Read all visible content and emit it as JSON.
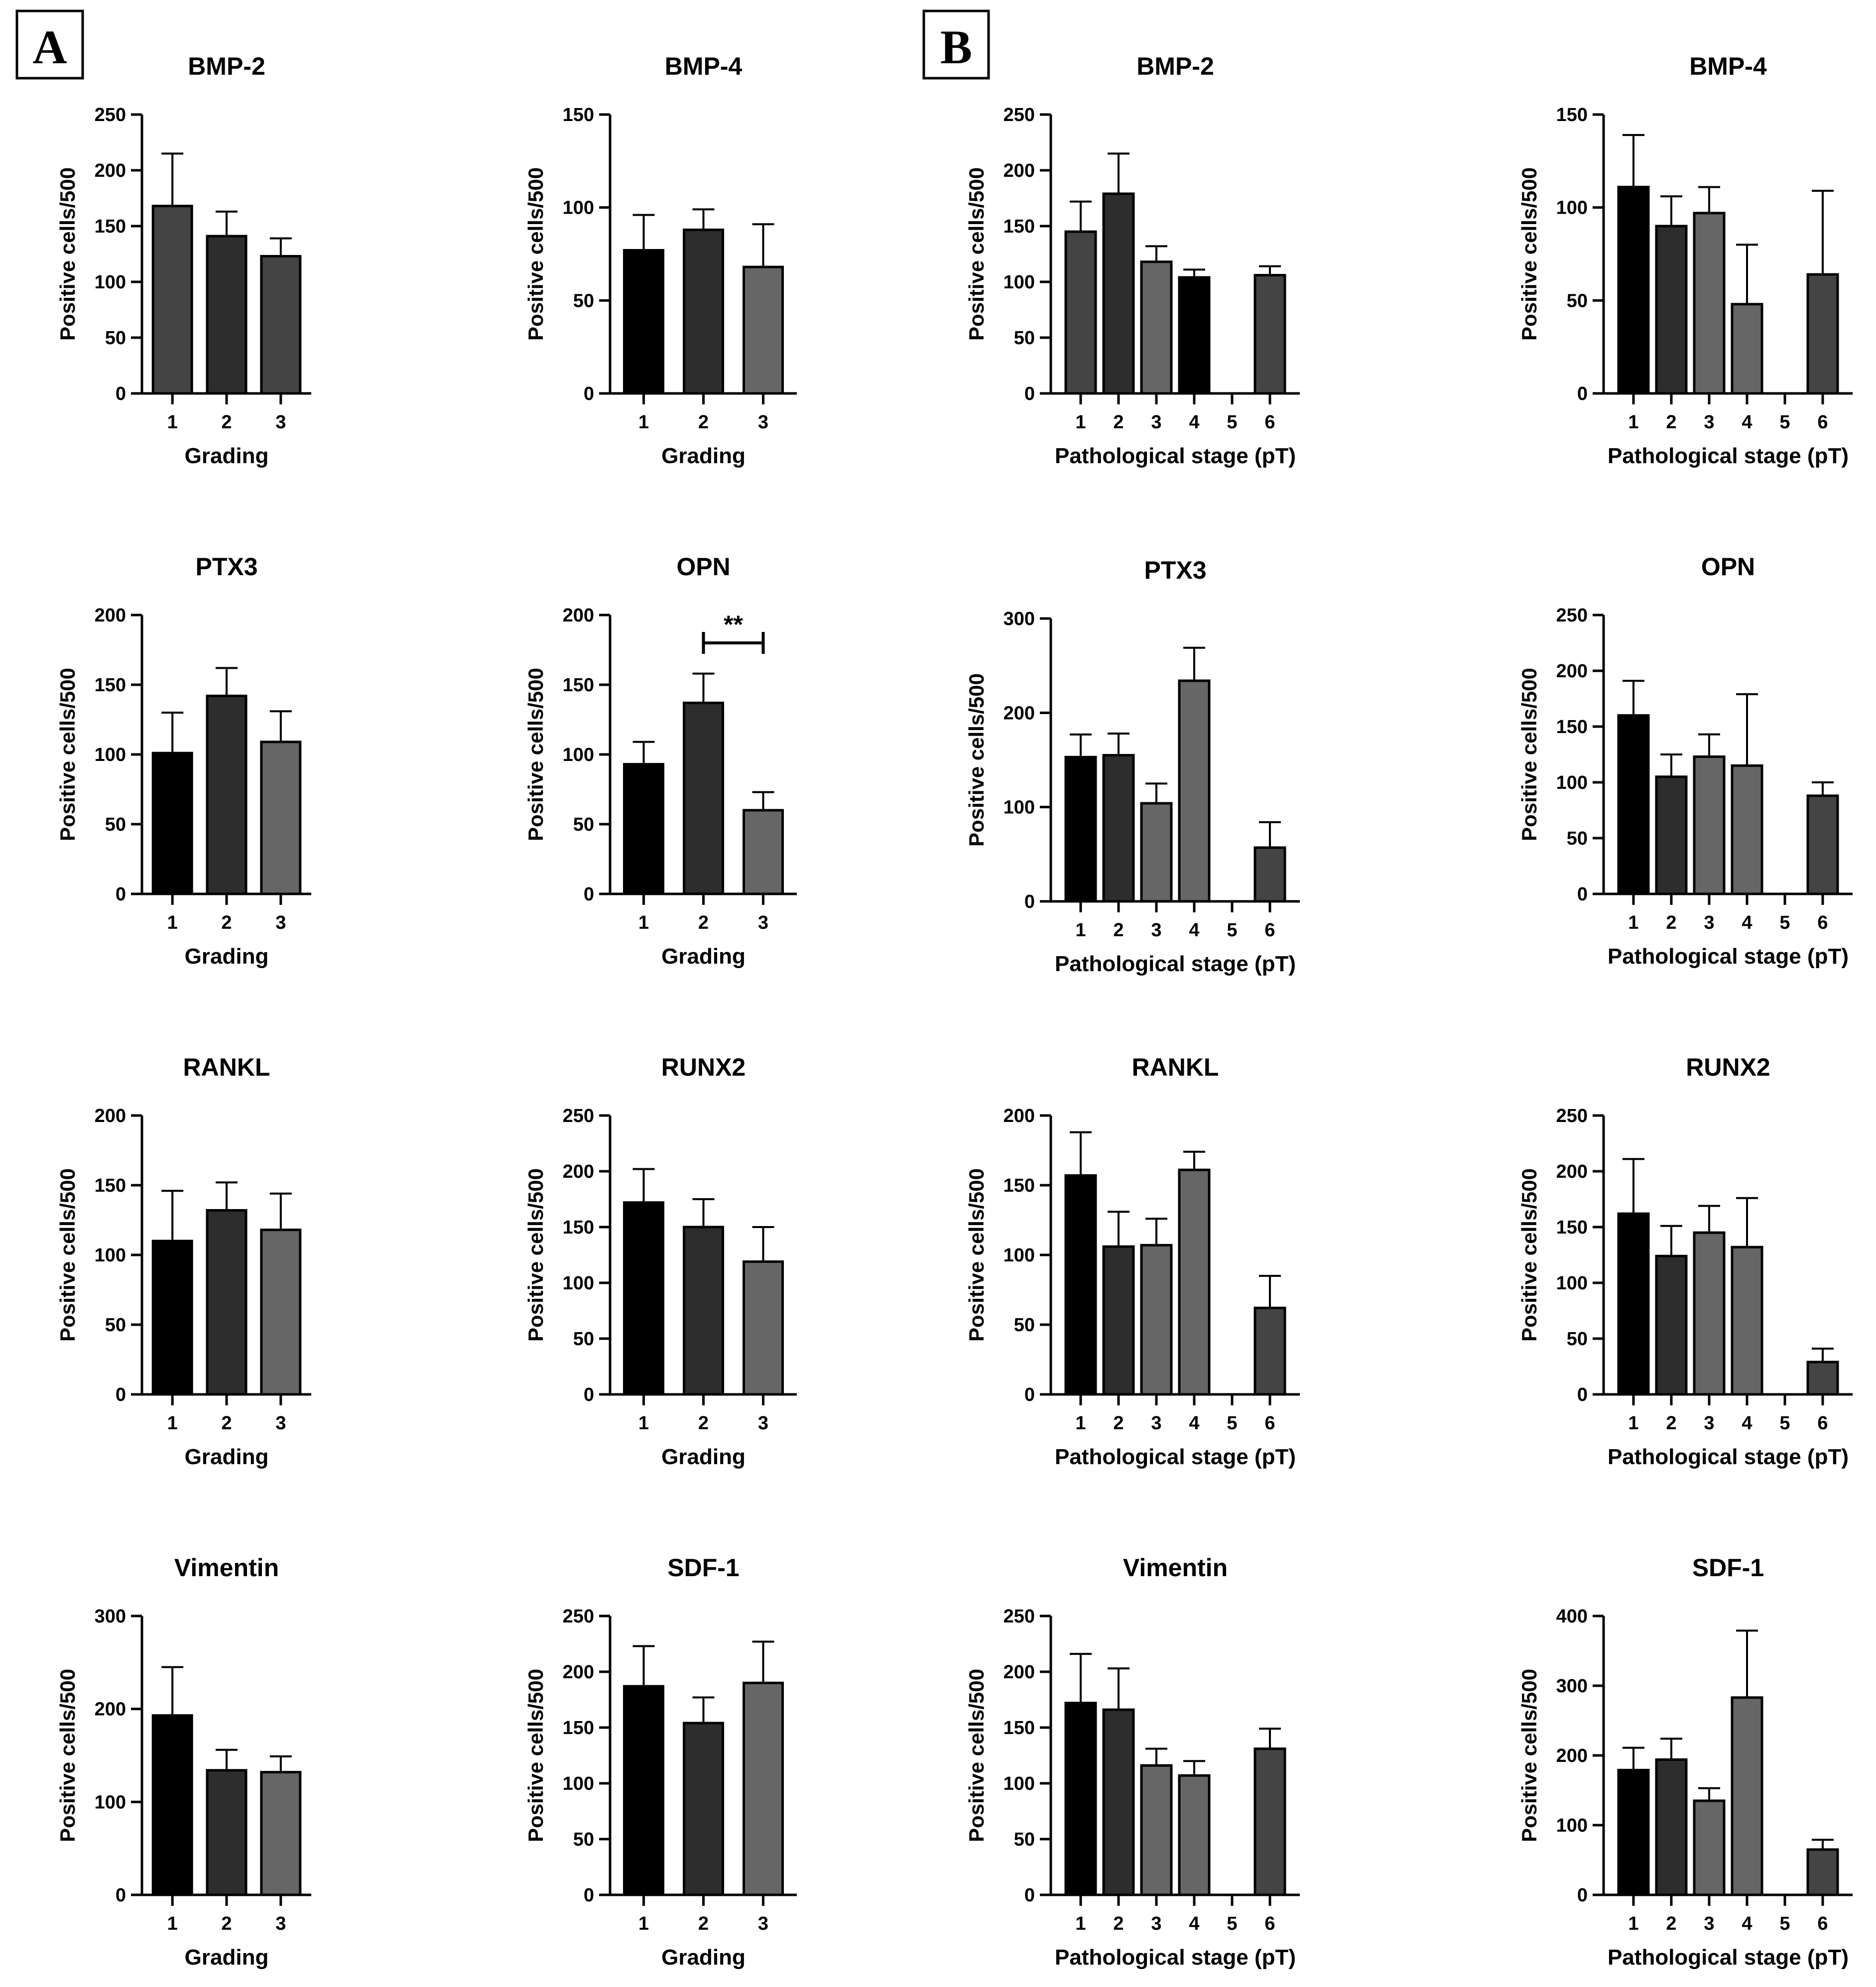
{
  "panel_labels": [
    "A",
    "B"
  ],
  "colors": {
    "black": "#000000",
    "dark": "#2d2d2d",
    "mid": "#444444",
    "gray": "#666666"
  },
  "chart_data": [
    {
      "panel": "A",
      "type": "bar",
      "title": "BMP-2",
      "xlabel": "Grading",
      "ylabel": "Positive cells/500",
      "categories": [
        "1",
        "2",
        "3"
      ],
      "values": [
        168,
        141,
        123
      ],
      "errors": [
        47,
        22,
        16
      ],
      "colors": [
        "mid",
        "dark",
        "mid"
      ],
      "ylim": [
        0,
        250
      ],
      "yticks": [
        0,
        50,
        100,
        150,
        200,
        250
      ]
    },
    {
      "panel": "A",
      "type": "bar",
      "title": "BMP-4",
      "xlabel": "Grading",
      "ylabel": "Positive cells/500",
      "categories": [
        "1",
        "2",
        "3"
      ],
      "values": [
        77,
        88,
        68
      ],
      "errors": [
        19,
        11,
        23
      ],
      "colors": [
        "black",
        "dark",
        "gray"
      ],
      "ylim": [
        0,
        150
      ],
      "yticks": [
        0,
        50,
        100,
        150
      ]
    },
    {
      "panel": "B",
      "type": "bar",
      "title": "BMP-2",
      "xlabel": "Pathological stage (pT)",
      "ylabel": "Positive cells/500",
      "categories": [
        "1",
        "2",
        "3",
        "4",
        "5",
        "6"
      ],
      "values": [
        145,
        179,
        118,
        104,
        null,
        106
      ],
      "errors": [
        27,
        36,
        14,
        7,
        null,
        8
      ],
      "colors": [
        "mid",
        "dark",
        "gray",
        "black",
        "mid",
        "mid"
      ],
      "ylim": [
        0,
        250
      ],
      "yticks": [
        0,
        50,
        100,
        150,
        200,
        250
      ]
    },
    {
      "panel": "B",
      "type": "bar",
      "title": "BMP-4",
      "xlabel": "Pathological stage (pT)",
      "ylabel": "Positive cells/500",
      "categories": [
        "1",
        "2",
        "3",
        "4",
        "5",
        "6"
      ],
      "values": [
        111,
        90,
        97,
        48,
        null,
        64
      ],
      "errors": [
        28,
        16,
        14,
        32,
        null,
        45
      ],
      "colors": [
        "black",
        "dark",
        "gray",
        "gray",
        "mid",
        "mid"
      ],
      "ylim": [
        0,
        150
      ],
      "yticks": [
        0,
        50,
        100,
        150
      ]
    },
    {
      "panel": "A",
      "type": "bar",
      "title": "PTX3",
      "xlabel": "Grading",
      "ylabel": "Positive cells/500",
      "categories": [
        "1",
        "2",
        "3"
      ],
      "values": [
        101,
        142,
        109
      ],
      "errors": [
        29,
        20,
        22
      ],
      "colors": [
        "black",
        "dark",
        "gray"
      ],
      "ylim": [
        0,
        200
      ],
      "yticks": [
        0,
        50,
        100,
        150,
        200
      ]
    },
    {
      "panel": "A",
      "type": "bar",
      "title": "OPN",
      "xlabel": "Grading",
      "ylabel": "Positive cells/500",
      "categories": [
        "1",
        "2",
        "3"
      ],
      "values": [
        93,
        137,
        60
      ],
      "errors": [
        16,
        21,
        13
      ],
      "colors": [
        "black",
        "dark",
        "gray"
      ],
      "ylim": [
        0,
        200
      ],
      "yticks": [
        0,
        50,
        100,
        150,
        200
      ],
      "significance": {
        "from": 1,
        "to": 2,
        "label": "**",
        "level": 180
      }
    },
    {
      "panel": "B",
      "type": "bar",
      "title": "PTX3",
      "xlabel": "Pathological stage (pT)",
      "ylabel": "Positive cells/500",
      "categories": [
        "1",
        "2",
        "3",
        "4",
        "5",
        "6"
      ],
      "values": [
        153,
        155,
        104,
        234,
        null,
        57
      ],
      "errors": [
        24,
        23,
        21,
        35,
        null,
        27
      ],
      "colors": [
        "black",
        "dark",
        "gray",
        "gray",
        "mid",
        "mid"
      ],
      "ylim": [
        0,
        300
      ],
      "yticks": [
        0,
        100,
        200,
        300
      ]
    },
    {
      "panel": "B",
      "type": "bar",
      "title": "OPN",
      "xlabel": "Pathological stage (pT)",
      "ylabel": "Positive cells/500",
      "categories": [
        "1",
        "2",
        "3",
        "4",
        "5",
        "6"
      ],
      "values": [
        160,
        105,
        123,
        115,
        null,
        88
      ],
      "errors": [
        31,
        20,
        20,
        64,
        null,
        12
      ],
      "colors": [
        "black",
        "dark",
        "gray",
        "gray",
        "mid",
        "mid"
      ],
      "ylim": [
        0,
        250
      ],
      "yticks": [
        0,
        50,
        100,
        150,
        200,
        250
      ]
    },
    {
      "panel": "A",
      "type": "bar",
      "title": "RANKL",
      "xlabel": "Grading",
      "ylabel": "Positive cells/500",
      "categories": [
        "1",
        "2",
        "3"
      ],
      "values": [
        110,
        132,
        118
      ],
      "errors": [
        36,
        20,
        26
      ],
      "colors": [
        "black",
        "dark",
        "gray"
      ],
      "ylim": [
        0,
        200
      ],
      "yticks": [
        0,
        50,
        100,
        150,
        200
      ]
    },
    {
      "panel": "A",
      "type": "bar",
      "title": "RUNX2",
      "xlabel": "Grading",
      "ylabel": "Positive cells/500",
      "categories": [
        "1",
        "2",
        "3"
      ],
      "values": [
        172,
        150,
        119
      ],
      "errors": [
        30,
        25,
        31
      ],
      "colors": [
        "black",
        "dark",
        "gray"
      ],
      "ylim": [
        0,
        250
      ],
      "yticks": [
        0,
        50,
        100,
        150,
        200,
        250
      ]
    },
    {
      "panel": "B",
      "type": "bar",
      "title": "RANKL",
      "xlabel": "Pathological stage (pT)",
      "ylabel": "Positive cells/500",
      "categories": [
        "1",
        "2",
        "3",
        "4",
        "5",
        "6"
      ],
      "values": [
        157,
        106,
        107,
        161,
        null,
        62
      ],
      "errors": [
        31,
        25,
        19,
        13,
        null,
        23
      ],
      "colors": [
        "black",
        "dark",
        "gray",
        "gray",
        "mid",
        "mid"
      ],
      "ylim": [
        0,
        200
      ],
      "yticks": [
        0,
        50,
        100,
        150,
        200
      ]
    },
    {
      "panel": "B",
      "type": "bar",
      "title": "RUNX2",
      "xlabel": "Pathological stage (pT)",
      "ylabel": "Positive cells/500",
      "categories": [
        "1",
        "2",
        "3",
        "4",
        "5",
        "6"
      ],
      "values": [
        162,
        124,
        145,
        132,
        null,
        29
      ],
      "errors": [
        49,
        27,
        24,
        44,
        null,
        12
      ],
      "colors": [
        "black",
        "dark",
        "gray",
        "gray",
        "mid",
        "mid"
      ],
      "ylim": [
        0,
        250
      ],
      "yticks": [
        0,
        50,
        100,
        150,
        200,
        250
      ]
    },
    {
      "panel": "A",
      "type": "bar",
      "title": "Vimentin",
      "xlabel": "Grading",
      "ylabel": "Positive cells/500",
      "categories": [
        "1",
        "2",
        "3"
      ],
      "values": [
        193,
        134,
        132
      ],
      "errors": [
        52,
        22,
        17
      ],
      "colors": [
        "black",
        "dark",
        "gray"
      ],
      "ylim": [
        0,
        300
      ],
      "yticks": [
        0,
        100,
        200,
        300
      ]
    },
    {
      "panel": "A",
      "type": "bar",
      "title": "SDF-1",
      "xlabel": "Grading",
      "ylabel": "Positive cells/500",
      "categories": [
        "1",
        "2",
        "3"
      ],
      "values": [
        187,
        154,
        190
      ],
      "errors": [
        36,
        23,
        37
      ],
      "colors": [
        "black",
        "dark",
        "gray"
      ],
      "ylim": [
        0,
        250
      ],
      "yticks": [
        0,
        50,
        100,
        150,
        200,
        250
      ]
    },
    {
      "panel": "B",
      "type": "bar",
      "title": "Vimentin",
      "xlabel": "Pathological stage (pT)",
      "ylabel": "Positive cells/500",
      "categories": [
        "1",
        "2",
        "3",
        "4",
        "5",
        "6"
      ],
      "values": [
        172,
        166,
        116,
        107,
        null,
        131
      ],
      "errors": [
        44,
        37,
        15,
        13,
        null,
        18
      ],
      "colors": [
        "black",
        "dark",
        "gray",
        "gray",
        "mid",
        "mid"
      ],
      "ylim": [
        0,
        250
      ],
      "yticks": [
        0,
        50,
        100,
        150,
        200,
        250
      ]
    },
    {
      "panel": "B",
      "type": "bar",
      "title": "SDF-1",
      "xlabel": "Pathological stage (pT)",
      "ylabel": "Positive cells/500",
      "categories": [
        "1",
        "2",
        "3",
        "4",
        "5",
        "6"
      ],
      "values": [
        179,
        194,
        135,
        283,
        null,
        65
      ],
      "errors": [
        32,
        30,
        18,
        96,
        null,
        14
      ],
      "colors": [
        "black",
        "dark",
        "gray",
        "gray",
        "mid",
        "mid"
      ],
      "ylim": [
        0,
        400
      ],
      "yticks": [
        0,
        100,
        200,
        300,
        400
      ]
    }
  ]
}
